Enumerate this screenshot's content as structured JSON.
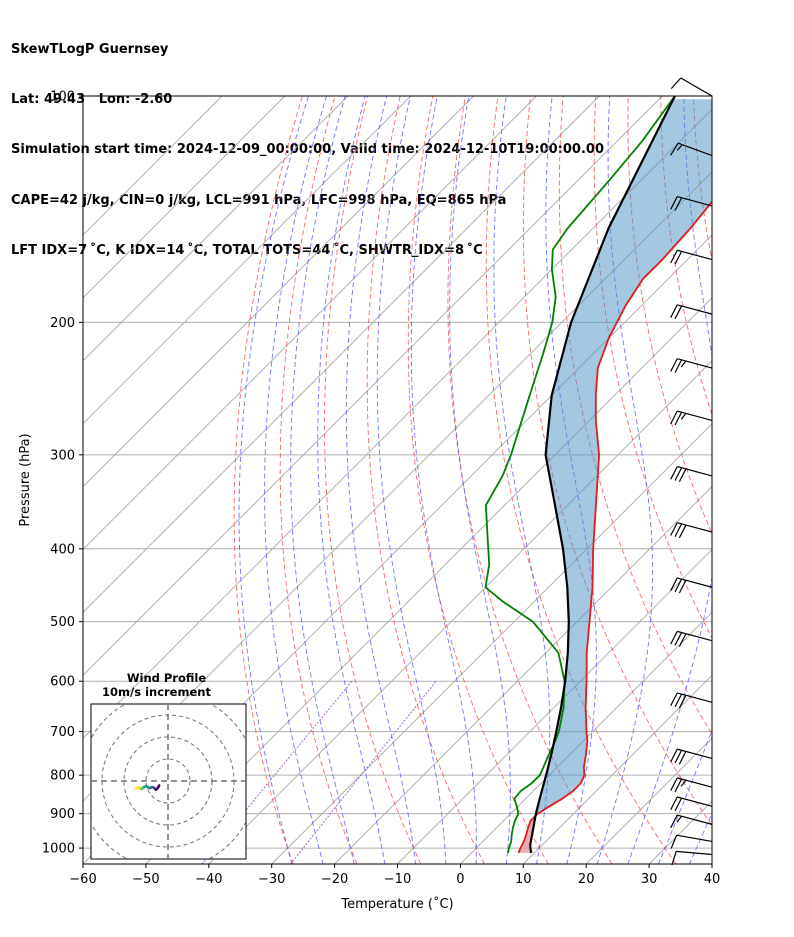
{
  "title_lines": [
    "SkewTLogP Guernsey",
    "Lat: 49.43   Lon: -2.60",
    "Simulation start time: 2024-12-09_00:00:00, Valid time: 2024-12-10T19:00:00.00",
    "CAPE=42 j/kg, CIN=0 j/kg, LCL=991 hPa, LFC=998 hPa, EQ=865 hPa",
    "LFT IDX=7 ˚C, K IDX=14 ˚C, TOTAL TOTS=44 ˚C, SHWTR_IDX=8 ˚C"
  ],
  "chart_data": {
    "type": "line",
    "title": "SkewTLogP Guernsey",
    "xlabel": "Temperature (˚C)",
    "ylabel": "Pressure (hPa)",
    "xlim": [
      -60,
      40
    ],
    "ylim": [
      1050,
      100
    ],
    "x_ticks": [
      -60,
      -50,
      -40,
      -30,
      -20,
      -10,
      0,
      10,
      20,
      30,
      40
    ],
    "x_tick_labels": [
      "−60",
      "−50",
      "−40",
      "−30",
      "−20",
      "−10",
      "0",
      "10",
      "20",
      "30",
      "40"
    ],
    "y_ticks": [
      1000,
      900,
      800,
      700,
      600,
      500,
      400,
      300,
      200,
      100
    ],
    "y_tick_labels": [
      "1000",
      "900",
      "800",
      "700",
      "600",
      "500",
      "400",
      "300",
      "200",
      "100"
    ],
    "series": [
      {
        "name": "Temperature",
        "color": "#e41a1c",
        "points": [
          [
            1015,
            7.5
          ],
          [
            1000,
            7.0
          ],
          [
            980,
            6.5
          ],
          [
            960,
            5.8
          ],
          [
            940,
            5.0
          ],
          [
            920,
            4.3
          ],
          [
            900,
            4.3
          ],
          [
            880,
            5.0
          ],
          [
            860,
            5.8
          ],
          [
            840,
            6.3
          ],
          [
            820,
            6.3
          ],
          [
            800,
            5.6
          ],
          [
            780,
            4.2
          ],
          [
            750,
            2.5
          ],
          [
            720,
            0.6
          ],
          [
            700,
            -1.0
          ],
          [
            650,
            -5.0
          ],
          [
            600,
            -9.0
          ],
          [
            550,
            -13.5
          ],
          [
            500,
            -18.0
          ],
          [
            450,
            -23.0
          ],
          [
            400,
            -29.0
          ],
          [
            350,
            -35.5
          ],
          [
            300,
            -43.0
          ],
          [
            270,
            -49.0
          ],
          [
            250,
            -53.0
          ],
          [
            230,
            -57.0
          ],
          [
            210,
            -60.0
          ],
          [
            190,
            -62.5
          ],
          [
            175,
            -64.0
          ],
          [
            165,
            -64.0
          ],
          [
            150,
            -64.5
          ],
          [
            135,
            -65.5
          ],
          [
            120,
            -66.5
          ],
          [
            110,
            -68.0
          ],
          [
            100,
            -69.0
          ]
        ]
      },
      {
        "name": "Dewpoint",
        "color": "#008000",
        "points": [
          [
            1015,
            5.8
          ],
          [
            1000,
            5.2
          ],
          [
            980,
            4.5
          ],
          [
            960,
            3.5
          ],
          [
            940,
            2.6
          ],
          [
            920,
            1.8
          ],
          [
            900,
            1.2
          ],
          [
            880,
            -0.2
          ],
          [
            860,
            -1.8
          ],
          [
            840,
            -2.0
          ],
          [
            820,
            -1.5
          ],
          [
            800,
            -1.5
          ],
          [
            780,
            -2.2
          ],
          [
            760,
            -3.0
          ],
          [
            720,
            -4.5
          ],
          [
            700,
            -5.4
          ],
          [
            650,
            -8.5
          ],
          [
            600,
            -12.5
          ],
          [
            550,
            -18.0
          ],
          [
            500,
            -27.0
          ],
          [
            470,
            -35.0
          ],
          [
            450,
            -40.0
          ],
          [
            420,
            -43.0
          ],
          [
            380,
            -48.5
          ],
          [
            350,
            -53.0
          ],
          [
            320,
            -55.0
          ],
          [
            300,
            -57.0
          ],
          [
            250,
            -63.5
          ],
          [
            220,
            -68.0
          ],
          [
            200,
            -71.5
          ],
          [
            185,
            -75.0
          ],
          [
            170,
            -80.0
          ],
          [
            160,
            -83.0
          ],
          [
            150,
            -84.0
          ],
          [
            130,
            -85.0
          ],
          [
            115,
            -86.0
          ],
          [
            100,
            -88.0
          ]
        ]
      },
      {
        "name": "Parcel",
        "color": "#000000",
        "points": [
          [
            1015,
            9.5
          ],
          [
            1000,
            8.6
          ],
          [
            991,
            8.1
          ],
          [
            950,
            6.3
          ],
          [
            900,
            4.0
          ],
          [
            850,
            1.8
          ],
          [
            800,
            -0.5
          ],
          [
            750,
            -3.0
          ],
          [
            700,
            -5.8
          ],
          [
            650,
            -8.9
          ],
          [
            600,
            -12.4
          ],
          [
            550,
            -16.5
          ],
          [
            500,
            -21.3
          ],
          [
            450,
            -27.0
          ],
          [
            400,
            -33.8
          ],
          [
            350,
            -42.0
          ],
          [
            300,
            -51.5
          ],
          [
            250,
            -60.0
          ],
          [
            200,
            -68.5
          ],
          [
            150,
            -77.5
          ],
          [
            100,
            -88.0
          ]
        ]
      }
    ],
    "shading": [
      {
        "name": "CAPE",
        "color": "#4a8fc6"
      },
      {
        "name": "CIN",
        "color": "#e7a0a8"
      }
    ],
    "wind_barbs": {
      "pressures": [
        100,
        120,
        140,
        165,
        195,
        230,
        270,
        320,
        380,
        450,
        530,
        640,
        760,
        830,
        880,
        930,
        980,
        1020
      ],
      "speed_ms": [
        8,
        15,
        18,
        20,
        22,
        25,
        25,
        30,
        30,
        30,
        30,
        30,
        30,
        25,
        20,
        15,
        10,
        8
      ],
      "direction_deg": [
        300,
        290,
        285,
        285,
        285,
        285,
        285,
        285,
        285,
        285,
        285,
        285,
        285,
        285,
        285,
        285,
        280,
        275
      ]
    },
    "hodograph": {
      "title": "Wind Profile",
      "subtitle": "10m/s increment",
      "ring_step_ms": 10,
      "points": [
        [
          -4,
          -2
        ],
        [
          -4.5,
          -3
        ],
        [
          -5.5,
          -4
        ],
        [
          -6,
          -3.5
        ],
        [
          -6.5,
          -3
        ],
        [
          -7.2,
          -2.8
        ],
        [
          -7.8,
          -3
        ],
        [
          -8.3,
          -3.2
        ],
        [
          -8.9,
          -3
        ],
        [
          -9.4,
          -2.6
        ],
        [
          -10.2,
          -2.4
        ],
        [
          -11.0,
          -2.8
        ],
        [
          -11.5,
          -3.3
        ],
        [
          -12.0,
          -3.6
        ],
        [
          -12.6,
          -3.4
        ],
        [
          -13.0,
          -3.0
        ],
        [
          -13.5,
          -2.8
        ],
        [
          -14.1,
          -3.1
        ],
        [
          -14.6,
          -3.6
        ]
      ]
    }
  }
}
